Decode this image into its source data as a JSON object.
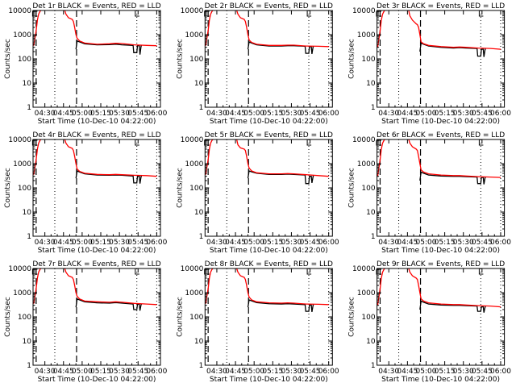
{
  "chart_data": {
    "type": "line",
    "layout": "3x3 grid",
    "shared": {
      "xlabel": "Start Time (10-Dec-10 04:22:00)",
      "ylabel": "Counts/sec",
      "yscale": "log",
      "ylim": [
        1,
        10000
      ],
      "xlim_minutes_after_start": [
        -1.5,
        101
      ],
      "x_ticks": [
        {
          "label": "04:30",
          "min": 8
        },
        {
          "label": "04:45",
          "min": 23
        },
        {
          "label": "05:00",
          "min": 38
        },
        {
          "label": "05:15",
          "min": 53
        },
        {
          "label": "05:30",
          "min": 68
        },
        {
          "label": "05:45",
          "min": 83
        },
        {
          "label": "06:00",
          "min": 98
        }
      ],
      "y_ticks": [
        {
          "label": "1",
          "v": 1
        },
        {
          "label": "10",
          "v": 10
        },
        {
          "label": "100",
          "v": 100
        },
        {
          "label": "1000",
          "v": 1000
        },
        {
          "label": "10000",
          "v": 10000
        }
      ],
      "dashed_lines_min": [
        1,
        33.5
      ],
      "dotted_lines_min": [
        16,
        82,
        98
      ],
      "colors": {
        "events": "#000000",
        "lld": "#ff0000"
      },
      "red_x": [
        -1,
        1,
        2,
        3,
        4,
        5,
        7,
        10,
        15,
        20,
        24,
        25,
        27,
        30,
        31,
        32,
        33,
        34,
        36,
        40,
        50,
        60,
        65,
        70,
        80,
        90,
        98
      ],
      "black_x": [
        33,
        34,
        36,
        40,
        50,
        60,
        65,
        70,
        79,
        79.5,
        82,
        82.5,
        84,
        84.5,
        85.5,
        86
      ]
    },
    "panels": [
      {
        "title": "Det 1r BLACK = Events, RED = LLD",
        "red": [
          350,
          1500,
          4000,
          7000,
          9000,
          10500,
          11000,
          11000,
          11000,
          11000,
          10000,
          7000,
          5000,
          4300,
          3500,
          2000,
          1000,
          700,
          550,
          450,
          400,
          420,
          440,
          430,
          380,
          360,
          350
        ],
        "black": [
          250,
          550,
          500,
          420,
          380,
          390,
          400,
          380,
          360,
          180,
          180,
          350,
          350,
          150,
          350,
          350
        ]
      },
      {
        "title": "Det 2r BLACK = Events, RED = LLD",
        "red": [
          350,
          1500,
          4000,
          7000,
          9000,
          10500,
          11000,
          11000,
          11000,
          11000,
          10000,
          7000,
          5000,
          4300,
          3500,
          2000,
          1000,
          600,
          480,
          400,
          360,
          360,
          370,
          370,
          340,
          330,
          320
        ],
        "black": [
          250,
          500,
          450,
          380,
          340,
          340,
          350,
          350,
          330,
          170,
          170,
          320,
          320,
          160,
          320,
          320
        ]
      },
      {
        "title": "Det 3r BLACK = Events, RED = LLD",
        "red": [
          300,
          1500,
          4000,
          7000,
          9000,
          10500,
          11000,
          11000,
          11000,
          11000,
          10000,
          6000,
          4000,
          2800,
          2600,
          2000,
          1000,
          500,
          420,
          360,
          320,
          300,
          310,
          300,
          280,
          270,
          250
        ],
        "black": [
          200,
          450,
          400,
          340,
          300,
          280,
          290,
          280,
          270,
          130,
          130,
          250,
          250,
          120,
          250,
          250
        ]
      },
      {
        "title": "Det 4r BLACK = Events, RED = LLD",
        "red": [
          350,
          1500,
          4000,
          7000,
          9000,
          10500,
          11000,
          11000,
          11000,
          11000,
          10000,
          7000,
          5000,
          4300,
          3500,
          2000,
          1000,
          600,
          480,
          400,
          360,
          350,
          360,
          350,
          330,
          320,
          300
        ],
        "black": [
          250,
          500,
          450,
          380,
          340,
          330,
          340,
          330,
          310,
          160,
          160,
          300,
          300,
          150,
          300,
          300
        ]
      },
      {
        "title": "Det 5r BLACK = Events, RED = LLD",
        "red": [
          350,
          1500,
          4000,
          7000,
          9000,
          10500,
          11000,
          11000,
          11000,
          11000,
          10000,
          6000,
          4500,
          4000,
          3500,
          2000,
          1000,
          650,
          500,
          420,
          380,
          380,
          390,
          380,
          350,
          320,
          300
        ],
        "black": [
          250,
          500,
          460,
          400,
          360,
          360,
          370,
          360,
          340,
          150,
          150,
          300,
          300,
          160,
          300,
          300
        ]
      },
      {
        "title": "Det 6r BLACK = Events, RED = LLD",
        "red": [
          300,
          1500,
          4000,
          7000,
          9000,
          10500,
          11000,
          11000,
          11000,
          11000,
          10000,
          7000,
          5000,
          4000,
          3500,
          2000,
          1000,
          550,
          450,
          380,
          340,
          320,
          320,
          310,
          290,
          280,
          270
        ],
        "black": [
          200,
          450,
          400,
          340,
          310,
          300,
          300,
          290,
          280,
          150,
          150,
          270,
          270,
          140,
          270,
          270
        ]
      },
      {
        "title": "Det 7r BLACK = Events, RED = LLD",
        "red": [
          350,
          1500,
          4000,
          7000,
          9000,
          10500,
          11000,
          11000,
          11000,
          11000,
          10000,
          7000,
          5000,
          4300,
          3500,
          2000,
          1000,
          700,
          550,
          450,
          420,
          400,
          420,
          400,
          360,
          340,
          320
        ],
        "black": [
          250,
          550,
          500,
          420,
          380,
          370,
          390,
          370,
          340,
          200,
          200,
          330,
          330,
          180,
          330,
          330
        ]
      },
      {
        "title": "Det 8r BLACK = Events, RED = LLD",
        "red": [
          350,
          1500,
          4000,
          7000,
          9000,
          10500,
          11000,
          11000,
          11000,
          11000,
          10000,
          7000,
          5000,
          4300,
          3500,
          2000,
          1000,
          650,
          500,
          420,
          380,
          370,
          380,
          370,
          340,
          330,
          320
        ],
        "black": [
          250,
          500,
          460,
          390,
          350,
          340,
          350,
          340,
          320,
          170,
          170,
          310,
          310,
          160,
          310,
          310
        ]
      },
      {
        "title": "Det 9r BLACK = Events, RED = LLD",
        "red": [
          300,
          1500,
          4000,
          7000,
          9000,
          10500,
          11000,
          11000,
          11000,
          11000,
          10000,
          7000,
          5000,
          4000,
          3500,
          2000,
          1000,
          550,
          450,
          380,
          340,
          320,
          320,
          310,
          290,
          280,
          260
        ],
        "black": [
          200,
          450,
          400,
          340,
          310,
          300,
          300,
          290,
          280,
          170,
          170,
          260,
          260,
          150,
          260,
          260
        ]
      }
    ]
  }
}
